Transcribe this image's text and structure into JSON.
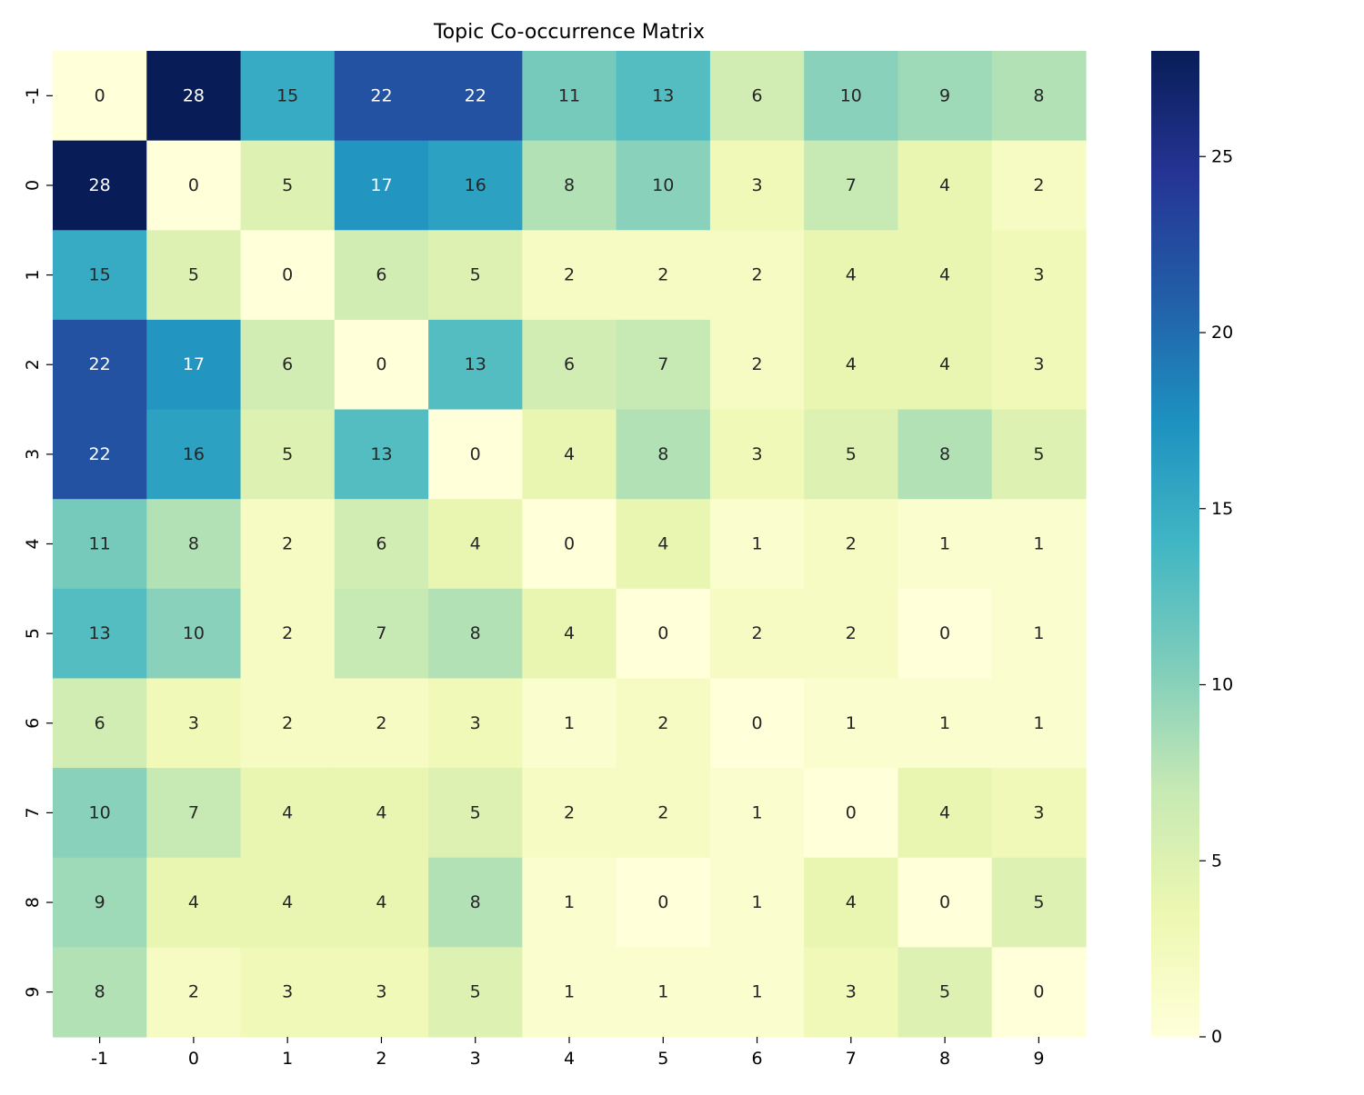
{
  "chart_data": {
    "type": "heatmap",
    "title": "Topic Co-occurrence Matrix",
    "xlabel": "",
    "ylabel": "",
    "x_categories": [
      "-1",
      "0",
      "1",
      "2",
      "3",
      "4",
      "5",
      "6",
      "7",
      "8",
      "9"
    ],
    "y_categories": [
      "-1",
      "0",
      "1",
      "2",
      "3",
      "4",
      "5",
      "6",
      "7",
      "8",
      "9"
    ],
    "values": [
      [
        0,
        28,
        15,
        22,
        22,
        11,
        13,
        6,
        10,
        9,
        8
      ],
      [
        28,
        0,
        5,
        17,
        16,
        8,
        10,
        3,
        7,
        4,
        2
      ],
      [
        15,
        5,
        0,
        6,
        5,
        2,
        2,
        2,
        4,
        4,
        3
      ],
      [
        22,
        17,
        6,
        0,
        13,
        6,
        7,
        2,
        4,
        4,
        3
      ],
      [
        22,
        16,
        5,
        13,
        0,
        4,
        8,
        3,
        5,
        8,
        5
      ],
      [
        11,
        8,
        2,
        6,
        4,
        0,
        4,
        1,
        2,
        1,
        1
      ],
      [
        13,
        10,
        2,
        7,
        8,
        4,
        0,
        2,
        2,
        0,
        1
      ],
      [
        6,
        3,
        2,
        2,
        3,
        1,
        2,
        0,
        1,
        1,
        1
      ],
      [
        10,
        7,
        4,
        4,
        5,
        2,
        2,
        1,
        0,
        4,
        3
      ],
      [
        9,
        4,
        4,
        4,
        8,
        1,
        0,
        1,
        4,
        0,
        5
      ],
      [
        8,
        2,
        3,
        3,
        5,
        1,
        1,
        1,
        3,
        5,
        0
      ]
    ],
    "value_range": [
      0,
      28
    ],
    "colormap": "YlGnBu",
    "colormap_stops": [
      "#ffffd9",
      "#edf8b1",
      "#c7e9b4",
      "#7fcdbb",
      "#41b6c4",
      "#1d91c0",
      "#225ea8",
      "#253494",
      "#081d58"
    ],
    "colorbar": {
      "ticks": [
        0,
        5,
        10,
        15,
        20,
        25
      ],
      "position": "right"
    },
    "annotations": true,
    "annotation_colors": {
      "dark": "#262626",
      "light": "#ffffff"
    },
    "grid": false
  }
}
